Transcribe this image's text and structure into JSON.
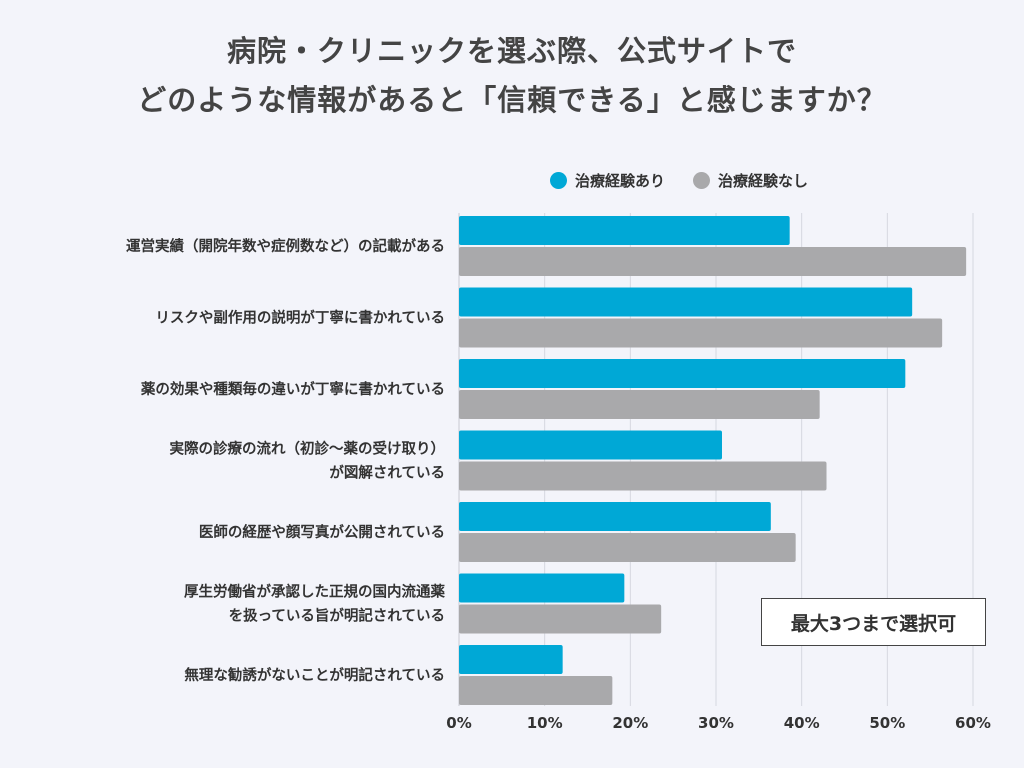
{
  "chart_data": {
    "type": "bar",
    "orientation": "horizontal",
    "title": [
      "病院・クリニックを選ぶ際、公式サイトで",
      "どのような情報があると「信頼できる」と感じますか？"
    ],
    "categories": [
      [
        "運営実績（開院年数や症例数など）の記載がある"
      ],
      [
        "リスクや副作用の説明が丁寧に書かれている"
      ],
      [
        "薬の効果や種類毎の違いが丁寧に書かれている"
      ],
      [
        "実際の診療の流れ（初診〜薬の受け取り）",
        "が図解されている"
      ],
      [
        "医師の経歴や顔写真が公開されている"
      ],
      [
        "厚生労働省が承認した正規の国内流通薬",
        "を扱っている旨が明記されている"
      ],
      [
        "無理な勧誘がないことが明記されている"
      ]
    ],
    "series": [
      {
        "name": "治療経験あり",
        "color": "#00a8d6",
        "values": [
          38.6,
          52.9,
          52.1,
          30.7,
          36.4,
          19.3,
          12.1
        ]
      },
      {
        "name": "治療経験なし",
        "color": "#a9a9ab",
        "values": [
          59.2,
          56.4,
          42.1,
          42.9,
          39.3,
          23.6,
          17.9
        ]
      }
    ],
    "xlim": [
      0,
      60
    ],
    "xticks": [
      "0%",
      "10%",
      "20%",
      "30%",
      "40%",
      "50%",
      "60%"
    ],
    "grid": true,
    "legend_position": "top",
    "note": "最大3つまで選択可"
  }
}
